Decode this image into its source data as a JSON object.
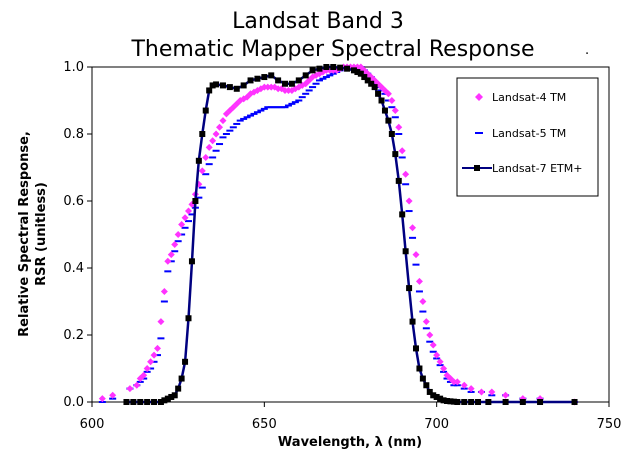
{
  "chart_data": {
    "type": "scatter",
    "title_line1": "Landsat  Band 3",
    "title_line2": "Thematic Mapper Spectral Response",
    "title_suffix": ".",
    "xlabel": "Wavelength, λ (nm)",
    "ylabel_line1": "Relative Spectral Response,",
    "ylabel_line2": "RSR (unitless)",
    "xlim": [
      600,
      750
    ],
    "ylim": [
      0,
      1
    ],
    "x_ticks": [
      "600",
      "650",
      "700",
      "750"
    ],
    "y_ticks": [
      "0.0",
      "0.2",
      "0.4",
      "0.6",
      "0.8",
      "1.0"
    ],
    "grid": false,
    "legend_position": "top-right",
    "series": [
      {
        "name": "Landsat-4 TM",
        "marker": "diamond",
        "color": "#ff33ff",
        "x": [
          603,
          606,
          611,
          613,
          614,
          615,
          616,
          617,
          618,
          619,
          620,
          621,
          622,
          623,
          624,
          625,
          626,
          627,
          628,
          629,
          630,
          631,
          632,
          633,
          634,
          635,
          636,
          637,
          638,
          639,
          640,
          641,
          642,
          643,
          644,
          645,
          646,
          647,
          648,
          649,
          650,
          651,
          652,
          653,
          654,
          655,
          656,
          657,
          658,
          659,
          660,
          661,
          662,
          663,
          664,
          665,
          666,
          667,
          668,
          669,
          670,
          671,
          672,
          673,
          674,
          675,
          676,
          677,
          678,
          679,
          680,
          681,
          682,
          683,
          684,
          685,
          686,
          687,
          688,
          689,
          690,
          691,
          692,
          693,
          694,
          695,
          696,
          697,
          698,
          699,
          700,
          701,
          702,
          703,
          704,
          705,
          706,
          708,
          710,
          713,
          716,
          720,
          725,
          730,
          740
        ],
        "y": [
          0.01,
          0.02,
          0.04,
          0.05,
          0.07,
          0.08,
          0.1,
          0.12,
          0.14,
          0.16,
          0.24,
          0.33,
          0.42,
          0.44,
          0.47,
          0.5,
          0.53,
          0.55,
          0.57,
          0.59,
          0.62,
          0.65,
          0.69,
          0.73,
          0.76,
          0.78,
          0.8,
          0.82,
          0.84,
          0.86,
          0.87,
          0.88,
          0.89,
          0.9,
          0.905,
          0.91,
          0.92,
          0.925,
          0.93,
          0.935,
          0.94,
          0.94,
          0.94,
          0.94,
          0.935,
          0.935,
          0.93,
          0.93,
          0.93,
          0.935,
          0.94,
          0.945,
          0.95,
          0.96,
          0.97,
          0.975,
          0.98,
          0.985,
          0.99,
          0.99,
          0.99,
          0.99,
          0.995,
          1.0,
          1.0,
          1.0,
          1.0,
          1.0,
          1.0,
          0.99,
          0.98,
          0.97,
          0.96,
          0.95,
          0.94,
          0.93,
          0.92,
          0.9,
          0.87,
          0.82,
          0.75,
          0.68,
          0.6,
          0.52,
          0.44,
          0.36,
          0.3,
          0.24,
          0.2,
          0.17,
          0.14,
          0.12,
          0.1,
          0.08,
          0.07,
          0.06,
          0.06,
          0.05,
          0.04,
          0.03,
          0.03,
          0.02,
          0.01,
          0.01,
          0.0
        ]
      },
      {
        "name": "Landsat-5 TM",
        "marker": "dash",
        "color": "#0000ff",
        "x": [
          603,
          606,
          611,
          613,
          614,
          615,
          616,
          617,
          618,
          619,
          620,
          621,
          622,
          623,
          624,
          625,
          626,
          627,
          628,
          629,
          630,
          631,
          632,
          633,
          634,
          635,
          636,
          637,
          638,
          639,
          640,
          641,
          642,
          643,
          644,
          645,
          646,
          647,
          648,
          649,
          650,
          651,
          652,
          653,
          654,
          655,
          656,
          657,
          658,
          659,
          660,
          661,
          662,
          663,
          664,
          665,
          666,
          667,
          668,
          669,
          670,
          671,
          672,
          673,
          674,
          675,
          676,
          677,
          678,
          679,
          680,
          681,
          682,
          683,
          684,
          685,
          686,
          687,
          688,
          689,
          690,
          691,
          692,
          693,
          694,
          695,
          696,
          697,
          698,
          699,
          700,
          701,
          702,
          703,
          704,
          705,
          706,
          708,
          710,
          713,
          716,
          720,
          725,
          730,
          740
        ],
        "y": [
          0.0,
          0.01,
          0.04,
          0.05,
          0.06,
          0.07,
          0.09,
          0.1,
          0.12,
          0.14,
          0.19,
          0.3,
          0.39,
          0.42,
          0.45,
          0.48,
          0.5,
          0.52,
          0.54,
          0.56,
          0.58,
          0.61,
          0.64,
          0.68,
          0.71,
          0.73,
          0.75,
          0.77,
          0.79,
          0.8,
          0.81,
          0.82,
          0.83,
          0.84,
          0.845,
          0.85,
          0.855,
          0.86,
          0.865,
          0.87,
          0.875,
          0.88,
          0.88,
          0.88,
          0.88,
          0.88,
          0.88,
          0.885,
          0.89,
          0.895,
          0.9,
          0.91,
          0.92,
          0.93,
          0.94,
          0.95,
          0.96,
          0.965,
          0.97,
          0.975,
          0.98,
          0.985,
          0.99,
          0.995,
          1.0,
          1.0,
          1.0,
          1.0,
          1.0,
          0.99,
          0.98,
          0.97,
          0.95,
          0.94,
          0.93,
          0.92,
          0.9,
          0.88,
          0.85,
          0.8,
          0.73,
          0.65,
          0.57,
          0.49,
          0.41,
          0.33,
          0.27,
          0.22,
          0.18,
          0.15,
          0.13,
          0.11,
          0.09,
          0.07,
          0.06,
          0.05,
          0.05,
          0.04,
          0.03,
          0.03,
          0.02,
          0.02,
          0.01,
          0.01,
          0.0
        ]
      },
      {
        "name": "Landsat-7 ETM+",
        "marker": "square-line",
        "color": "#000080",
        "x": [
          610,
          612,
          614,
          616,
          618,
          620,
          621,
          622,
          623,
          624,
          625,
          626,
          627,
          628,
          629,
          630,
          631,
          632,
          633,
          634,
          635,
          636,
          638,
          640,
          642,
          644,
          646,
          648,
          650,
          652,
          654,
          656,
          658,
          660,
          662,
          664,
          666,
          668,
          670,
          672,
          674,
          676,
          677,
          678,
          679,
          680,
          681,
          682,
          683,
          684,
          685,
          686,
          687,
          688,
          689,
          690,
          691,
          692,
          693,
          694,
          695,
          696,
          697,
          698,
          699,
          700,
          701,
          702,
          703,
          704,
          705,
          706,
          708,
          710,
          712,
          715,
          720,
          725,
          730,
          740
        ],
        "y": [
          0.0,
          0.0,
          0.0,
          0.0,
          0.0,
          0.0,
          0.005,
          0.01,
          0.015,
          0.02,
          0.04,
          0.07,
          0.12,
          0.25,
          0.42,
          0.6,
          0.72,
          0.8,
          0.87,
          0.93,
          0.945,
          0.948,
          0.945,
          0.94,
          0.935,
          0.945,
          0.96,
          0.965,
          0.97,
          0.975,
          0.96,
          0.95,
          0.95,
          0.96,
          0.975,
          0.99,
          0.995,
          1.0,
          1.0,
          0.998,
          0.995,
          0.99,
          0.985,
          0.98,
          0.97,
          0.96,
          0.95,
          0.94,
          0.92,
          0.9,
          0.87,
          0.84,
          0.8,
          0.74,
          0.66,
          0.56,
          0.45,
          0.34,
          0.24,
          0.16,
          0.1,
          0.07,
          0.05,
          0.03,
          0.02,
          0.015,
          0.01,
          0.005,
          0.003,
          0.002,
          0.001,
          0.0,
          0.0,
          0.0,
          0.0,
          0.0,
          0.0,
          0.0,
          0.0,
          0.0
        ]
      }
    ]
  }
}
